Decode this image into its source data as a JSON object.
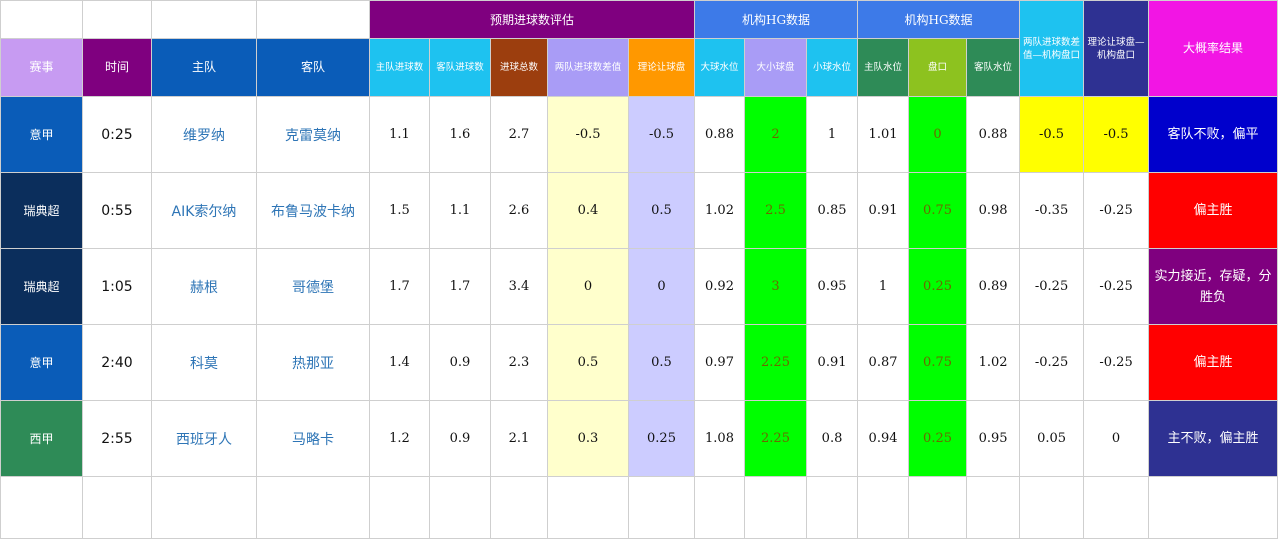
{
  "header": {
    "group_expected": "预期进球数评估",
    "group_hg_1": "机构HG数据",
    "group_hg_2": "机构HG数据",
    "columns": {
      "league": "赛事",
      "time": "时间",
      "home": "主队",
      "away": "客队",
      "home_goals": "主队进球数",
      "away_goals": "客队进球数",
      "total_goals": "进球总数",
      "goal_diff": "两队进球数差值",
      "theory_handicap": "理论让球盘",
      "over_odds": "大球水位",
      "ou_line": "大小球盘",
      "under_odds": "小球水位",
      "home_odds": "主队水位",
      "handicap": "盘口",
      "away_odds": "客队水位",
      "diff_minus_line_1": "两队进球数差",
      "diff_minus_line_2": "值—机构盘口",
      "theory_minus_line_1": "理论让球盘—",
      "theory_minus_line_2": "机构盘口",
      "result": "大概率结果"
    }
  },
  "rows": [
    {
      "league": "意甲",
      "time": "0:25",
      "home": "维罗纳",
      "away": "克雷莫纳",
      "home_goals": "1.1",
      "away_goals": "1.6",
      "total_goals": "2.7",
      "goal_diff": "-0.5",
      "theory_handicap": "-0.5",
      "over_odds": "0.88",
      "ou_line": "2",
      "under_odds": "1",
      "home_odds": "1.01",
      "handicap": "0",
      "away_odds": "0.88",
      "diff_minus_line": "-0.5",
      "theory_minus_line": "-0.5",
      "result": "客队不败，偏平"
    },
    {
      "league": "瑞典超",
      "time": "0:55",
      "home": "AIK索尔纳",
      "away": "布鲁马波卡纳",
      "home_goals": "1.5",
      "away_goals": "1.1",
      "total_goals": "2.6",
      "goal_diff": "0.4",
      "theory_handicap": "0.5",
      "over_odds": "1.02",
      "ou_line": "2.5",
      "under_odds": "0.85",
      "home_odds": "0.91",
      "handicap": "0.75",
      "away_odds": "0.98",
      "diff_minus_line": "-0.35",
      "theory_minus_line": "-0.25",
      "result": "偏主胜"
    },
    {
      "league": "瑞典超",
      "time": "1:05",
      "home": "赫根",
      "away": "哥德堡",
      "home_goals": "1.7",
      "away_goals": "1.7",
      "total_goals": "3.4",
      "goal_diff": "0",
      "theory_handicap": "0",
      "over_odds": "0.92",
      "ou_line": "3",
      "under_odds": "0.95",
      "home_odds": "1",
      "handicap": "0.25",
      "away_odds": "0.89",
      "diff_minus_line": "-0.25",
      "theory_minus_line": "-0.25",
      "result": "实力接近，存疑，分胜负"
    },
    {
      "league": "意甲",
      "time": "2:40",
      "home": "科莫",
      "away": "热那亚",
      "home_goals": "1.4",
      "away_goals": "0.9",
      "total_goals": "2.3",
      "goal_diff": "0.5",
      "theory_handicap": "0.5",
      "over_odds": "0.97",
      "ou_line": "2.25",
      "under_odds": "0.91",
      "home_odds": "0.87",
      "handicap": "0.75",
      "away_odds": "1.02",
      "diff_minus_line": "-0.25",
      "theory_minus_line": "-0.25",
      "result": "偏主胜"
    },
    {
      "league": "西甲",
      "time": "2:55",
      "home": "西班牙人",
      "away": "马略卡",
      "home_goals": "1.2",
      "away_goals": "0.9",
      "total_goals": "2.1",
      "goal_diff": "0.3",
      "theory_handicap": "0.25",
      "over_odds": "1.08",
      "ou_line": "2.25",
      "under_odds": "0.8",
      "home_odds": "0.94",
      "handicap": "0.25",
      "away_odds": "0.95",
      "diff_minus_line": "0.05",
      "theory_minus_line": "0",
      "result": "主不败，偏主胜"
    }
  ],
  "colors": {
    "league_bg": [
      "#0a5cb8",
      "#0b2e5c",
      "#0b2e5c",
      "#0a5cb8",
      "#2e8b57"
    ],
    "result_bg": [
      "#0000cc",
      "#ff0000",
      "#7f007f",
      "#ff0000",
      "#2e3192"
    ],
    "diff_minus_line_bg": [
      "#ffff00",
      "#ffffff",
      "#ffffff",
      "#ffffff",
      "#ffffff"
    ],
    "theory_minus_line_bg": [
      "#ffff00",
      "#ffffff",
      "#ffffff",
      "#ffffff",
      "#ffffff"
    ]
  }
}
